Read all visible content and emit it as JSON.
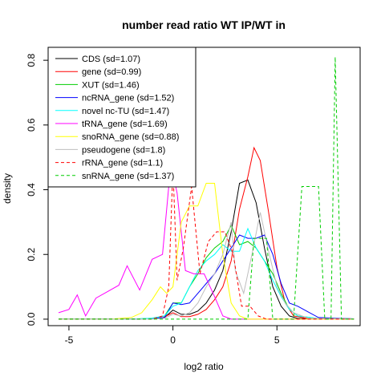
{
  "chart_data": {
    "type": "line",
    "title": "number read ratio WT IP/WT in",
    "xlabel": "log2 ratio",
    "ylabel": "density",
    "xlim": [
      -6.0,
      9.0
    ],
    "ylim": [
      -0.02,
      0.84
    ],
    "x_ticks": [
      -5,
      0,
      5
    ],
    "x_tick_labels": [
      "-5",
      "0",
      "5"
    ],
    "y_ticks": [
      0.0,
      0.2,
      0.4,
      0.6,
      0.8
    ],
    "y_tick_labels": [
      "0.0",
      "0.2",
      "0.4",
      "0.6",
      "0.8"
    ],
    "grid": false,
    "legend_position": "top-left",
    "series": [
      {
        "name": "CDS (sd=1.07)",
        "color": "#000000",
        "dash": false,
        "x": [
          -5.5,
          -4.0,
          -2.0,
          -1.0,
          -0.4,
          0.0,
          0.4,
          0.8,
          1.2,
          1.6,
          2.0,
          2.4,
          2.8,
          3.2,
          3.6,
          4.0,
          4.4,
          4.8,
          5.2,
          5.6,
          6.0,
          8.7
        ],
        "y": [
          0,
          0,
          0,
          0.002,
          0.005,
          0.028,
          0.015,
          0.015,
          0.025,
          0.05,
          0.09,
          0.15,
          0.27,
          0.42,
          0.43,
          0.36,
          0.22,
          0.1,
          0.04,
          0.01,
          0.002,
          0.001
        ]
      },
      {
        "name": "gene (sd=0.99)",
        "color": "#ff0000",
        "dash": false,
        "x": [
          -5.5,
          -3.0,
          -1.5,
          -0.5,
          0.0,
          0.4,
          0.8,
          1.2,
          1.6,
          2.0,
          2.4,
          2.8,
          3.2,
          3.6,
          3.9,
          4.2,
          4.6,
          5.0,
          5.4,
          5.8,
          6.5,
          8.7
        ],
        "y": [
          0,
          0,
          0,
          0.004,
          0.02,
          0.008,
          0.008,
          0.015,
          0.03,
          0.06,
          0.1,
          0.18,
          0.34,
          0.44,
          0.53,
          0.49,
          0.33,
          0.16,
          0.05,
          0.01,
          0.002,
          0.001
        ]
      },
      {
        "name": "XUT (sd=1.46)",
        "color": "#00cd00",
        "dash": false,
        "x": [
          -5.5,
          -2.0,
          -1.0,
          -0.4,
          0.0,
          0.4,
          0.8,
          1.2,
          1.6,
          2.0,
          2.4,
          2.8,
          3.2,
          3.6,
          4.0,
          4.4,
          4.8,
          5.2,
          5.6,
          6.0,
          7.0,
          8.7
        ],
        "y": [
          0,
          0,
          0.003,
          0.01,
          0.05,
          0.05,
          0.1,
          0.14,
          0.19,
          0.22,
          0.24,
          0.29,
          0.23,
          0.24,
          0.22,
          0.18,
          0.14,
          0.08,
          0.03,
          0.01,
          0.002,
          0.001
        ]
      },
      {
        "name": "ncRNA_gene (sd=1.52)",
        "color": "#0000ff",
        "dash": false,
        "x": [
          -5.5,
          -2.0,
          -1.0,
          -0.4,
          0.0,
          0.4,
          0.8,
          1.2,
          1.6,
          2.0,
          2.4,
          2.8,
          3.2,
          3.6,
          4.0,
          4.4,
          4.8,
          5.2,
          5.6,
          6.0,
          7.0,
          8.7
        ],
        "y": [
          0,
          0,
          0.002,
          0.005,
          0.05,
          0.045,
          0.05,
          0.08,
          0.11,
          0.14,
          0.18,
          0.22,
          0.26,
          0.25,
          0.25,
          0.26,
          0.2,
          0.11,
          0.05,
          0.04,
          0.005,
          0.001
        ]
      },
      {
        "name": "novel nc-TU (sd=1.47)",
        "color": "#00ffff",
        "dash": false,
        "x": [
          -5.5,
          -2.0,
          -1.0,
          -0.4,
          0.0,
          0.4,
          0.8,
          1.2,
          1.6,
          2.0,
          2.4,
          2.8,
          3.2,
          3.6,
          4.0,
          4.4,
          4.8,
          5.2,
          5.6,
          6.0,
          7.0,
          8.7
        ],
        "y": [
          0,
          0,
          0.003,
          0.01,
          0.04,
          0.05,
          0.1,
          0.15,
          0.18,
          0.2,
          0.23,
          0.21,
          0.21,
          0.28,
          0.22,
          0.18,
          0.12,
          0.07,
          0.03,
          0.01,
          0.002,
          0.001
        ]
      },
      {
        "name": "tRNA_gene (sd=1.69)",
        "color": "#ff00ff",
        "dash": false,
        "x": [
          -5.5,
          -5.0,
          -4.6,
          -4.2,
          -3.7,
          -2.6,
          -2.2,
          -1.6,
          -1.0,
          -0.5,
          -0.1,
          0.2,
          0.6,
          1.0,
          1.5,
          2.0,
          2.4,
          2.8,
          3.2,
          3.6,
          4.5,
          8.7
        ],
        "y": [
          0.02,
          0.03,
          0.075,
          0.01,
          0.065,
          0.105,
          0.165,
          0.09,
          0.185,
          0.2,
          0.48,
          0.39,
          0.15,
          0.14,
          0.14,
          0.07,
          0.01,
          0.0,
          0.0,
          0.0,
          0.0,
          0.0
        ]
      },
      {
        "name": "snoRNA_gene (sd=0.88)",
        "color": "#ffff00",
        "dash": false,
        "x": [
          -5.5,
          -3.0,
          -2.0,
          -1.5,
          -1.0,
          -0.6,
          -0.3,
          0.0,
          0.4,
          0.8,
          1.2,
          1.6,
          2.0,
          2.4,
          2.8,
          3.2,
          3.6,
          4.0,
          8.7
        ],
        "y": [
          0,
          0,
          0.005,
          0.02,
          0.06,
          0.1,
          0.08,
          0.1,
          0.3,
          0.35,
          0.35,
          0.42,
          0.42,
          0.2,
          0.05,
          0.01,
          0.0,
          0.0,
          0.0
        ]
      },
      {
        "name": "pseudogene (sd=1.8)",
        "color": "#bebebe",
        "dash": false,
        "x": [
          -5.5,
          -2.0,
          -1.0,
          -0.4,
          0.0,
          0.4,
          0.8,
          1.2,
          1.6,
          2.0,
          2.4,
          2.8,
          3.0,
          3.4,
          3.8,
          4.2,
          4.6,
          5.0,
          5.4,
          5.8,
          6.5,
          8.7
        ],
        "y": [
          0,
          0,
          0,
          0.003,
          0.015,
          0.01,
          0.02,
          0.05,
          0.1,
          0.14,
          0.2,
          0.3,
          0.15,
          0.08,
          0.2,
          0.33,
          0.21,
          0.1,
          0.05,
          0.02,
          0.003,
          0.001
        ]
      },
      {
        "name": "rRNA_gene (sd=1.1)",
        "color": "#ff0000",
        "dash": true,
        "x": [
          -5.5,
          -1.0,
          -0.5,
          -0.2,
          0.0,
          0.2,
          0.5,
          0.9,
          1.3,
          1.7,
          2.1,
          2.5,
          2.9,
          3.3,
          3.7,
          4.1,
          4.5,
          5.0,
          8.7
        ],
        "y": [
          0,
          0,
          0.01,
          0.1,
          0.47,
          0.12,
          0.22,
          0.41,
          0.14,
          0.24,
          0.27,
          0.27,
          0.2,
          0.04,
          0.04,
          0.01,
          0.0,
          0.0,
          0.0
        ]
      },
      {
        "name": "snRNA_gene (sd=1.37)",
        "color": "#00cd00",
        "dash": true,
        "x": [
          -5.5,
          3.0,
          3.6,
          3.9,
          4.2,
          4.5,
          4.8,
          5.3,
          5.8,
          6.2,
          6.6,
          7.0,
          7.3,
          7.6,
          7.8,
          8.1,
          8.4,
          8.7
        ],
        "y": [
          0,
          0,
          0.0,
          0.25,
          0.25,
          0.25,
          0.0,
          0.0,
          0.0,
          0.41,
          0.41,
          0.41,
          0.0,
          0.0,
          0.81,
          0.0,
          0.0,
          0.0
        ]
      }
    ]
  }
}
